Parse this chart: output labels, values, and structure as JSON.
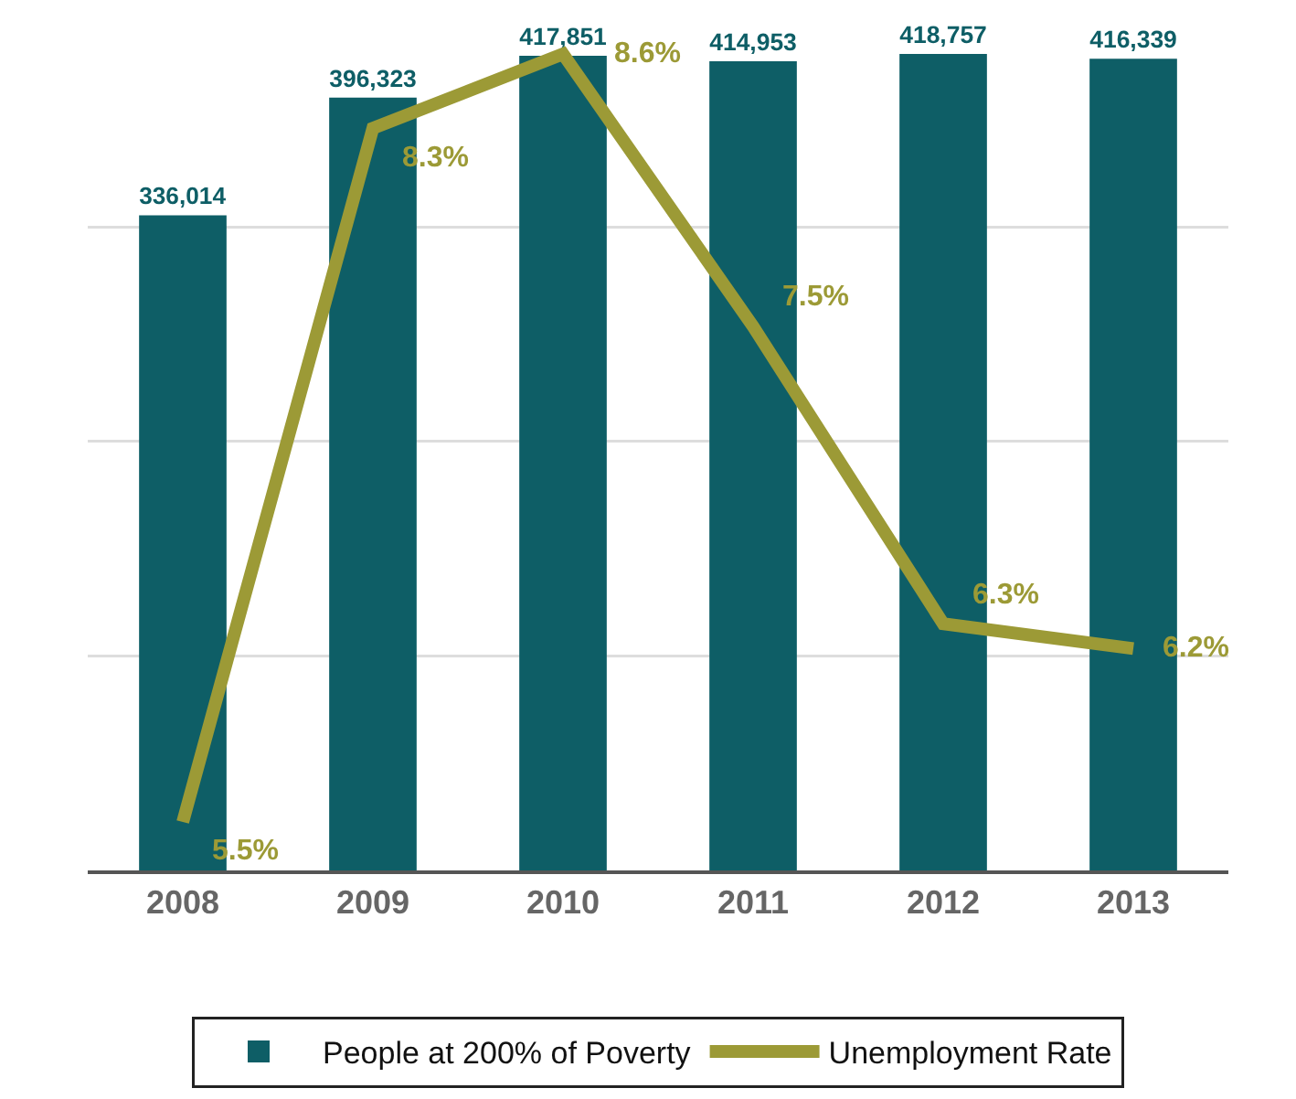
{
  "chart_data": {
    "type": "bar",
    "categories": [
      "2008",
      "2009",
      "2010",
      "2011",
      "2012",
      "2013"
    ],
    "series": [
      {
        "name": "People at 200% of Poverty",
        "color": "#0e5e66",
        "values": [
          336014,
          396323,
          417851,
          414953,
          418757,
          416339
        ],
        "value_labels": [
          "336,014",
          "396,323",
          "417,851",
          "414,953",
          "418,757",
          "416,339"
        ]
      },
      {
        "name": "Unemployment Rate",
        "type": "line",
        "axis": "y2",
        "color": "#9c9a36",
        "values": [
          5.5,
          8.3,
          8.6,
          7.5,
          6.3,
          6.2
        ],
        "value_labels": [
          "5.5%",
          "8.3%",
          "8.6%",
          "7.5%",
          "6.3%",
          "6.2%"
        ]
      }
    ],
    "yticks": [
      {
        "value": 110000,
        "label": null
      },
      {
        "value": 220000,
        "label": null
      },
      {
        "value": 330000,
        "label": null
      }
    ],
    "grid": "y",
    "tick_labels": "x",
    "legend": "bottom",
    "line_style": "solid"
  }
}
